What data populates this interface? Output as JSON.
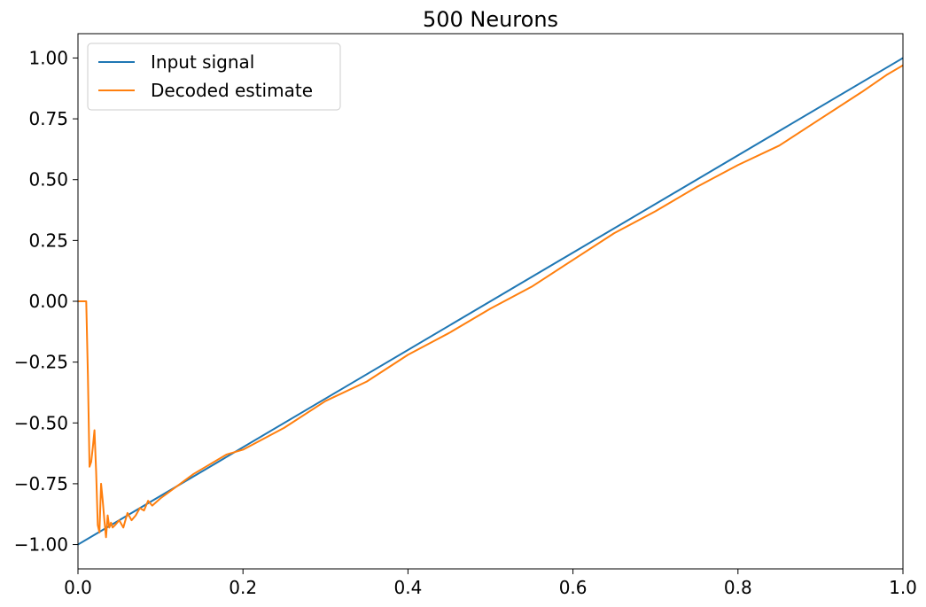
{
  "chart_data": {
    "type": "line",
    "title": "500 Neurons",
    "xlabel": "",
    "ylabel": "",
    "xlim": [
      0.0,
      1.0
    ],
    "ylim": [
      -1.1,
      1.1
    ],
    "grid": false,
    "legend_position": "top-left",
    "x_ticks": [
      "0.0",
      "0.2",
      "0.4",
      "0.6",
      "0.8",
      "1.0"
    ],
    "y_ticks": [
      "−1.00",
      "−0.75",
      "−0.50",
      "−0.25",
      "0.00",
      "0.25",
      "0.50",
      "0.75",
      "1.00"
    ],
    "series": [
      {
        "name": "Input signal",
        "color": "#1f77b4",
        "x": [
          0.0,
          1.0
        ],
        "y": [
          -1.0,
          1.0
        ]
      },
      {
        "name": "Decoded estimate",
        "color": "#ff7f0e",
        "x": [
          0.0,
          0.01,
          0.012,
          0.014,
          0.016,
          0.018,
          0.02,
          0.022,
          0.024,
          0.026,
          0.028,
          0.03,
          0.032,
          0.034,
          0.036,
          0.038,
          0.04,
          0.042,
          0.045,
          0.05,
          0.055,
          0.06,
          0.065,
          0.07,
          0.075,
          0.08,
          0.085,
          0.09,
          0.1,
          0.12,
          0.14,
          0.16,
          0.18,
          0.2,
          0.25,
          0.3,
          0.35,
          0.4,
          0.45,
          0.5,
          0.55,
          0.6,
          0.65,
          0.7,
          0.75,
          0.8,
          0.85,
          0.9,
          0.95,
          0.98,
          1.0
        ],
        "y": [
          0.0,
          0.0,
          -0.3,
          -0.68,
          -0.66,
          -0.6,
          -0.53,
          -0.7,
          -0.92,
          -0.95,
          -0.75,
          -0.82,
          -0.9,
          -0.97,
          -0.88,
          -0.93,
          -0.91,
          -0.93,
          -0.92,
          -0.9,
          -0.93,
          -0.87,
          -0.9,
          -0.88,
          -0.85,
          -0.86,
          -0.82,
          -0.84,
          -0.81,
          -0.76,
          -0.71,
          -0.67,
          -0.63,
          -0.61,
          -0.52,
          -0.41,
          -0.33,
          -0.22,
          -0.13,
          -0.03,
          0.06,
          0.17,
          0.28,
          0.37,
          0.47,
          0.56,
          0.64,
          0.75,
          0.86,
          0.93,
          0.97
        ]
      }
    ]
  }
}
